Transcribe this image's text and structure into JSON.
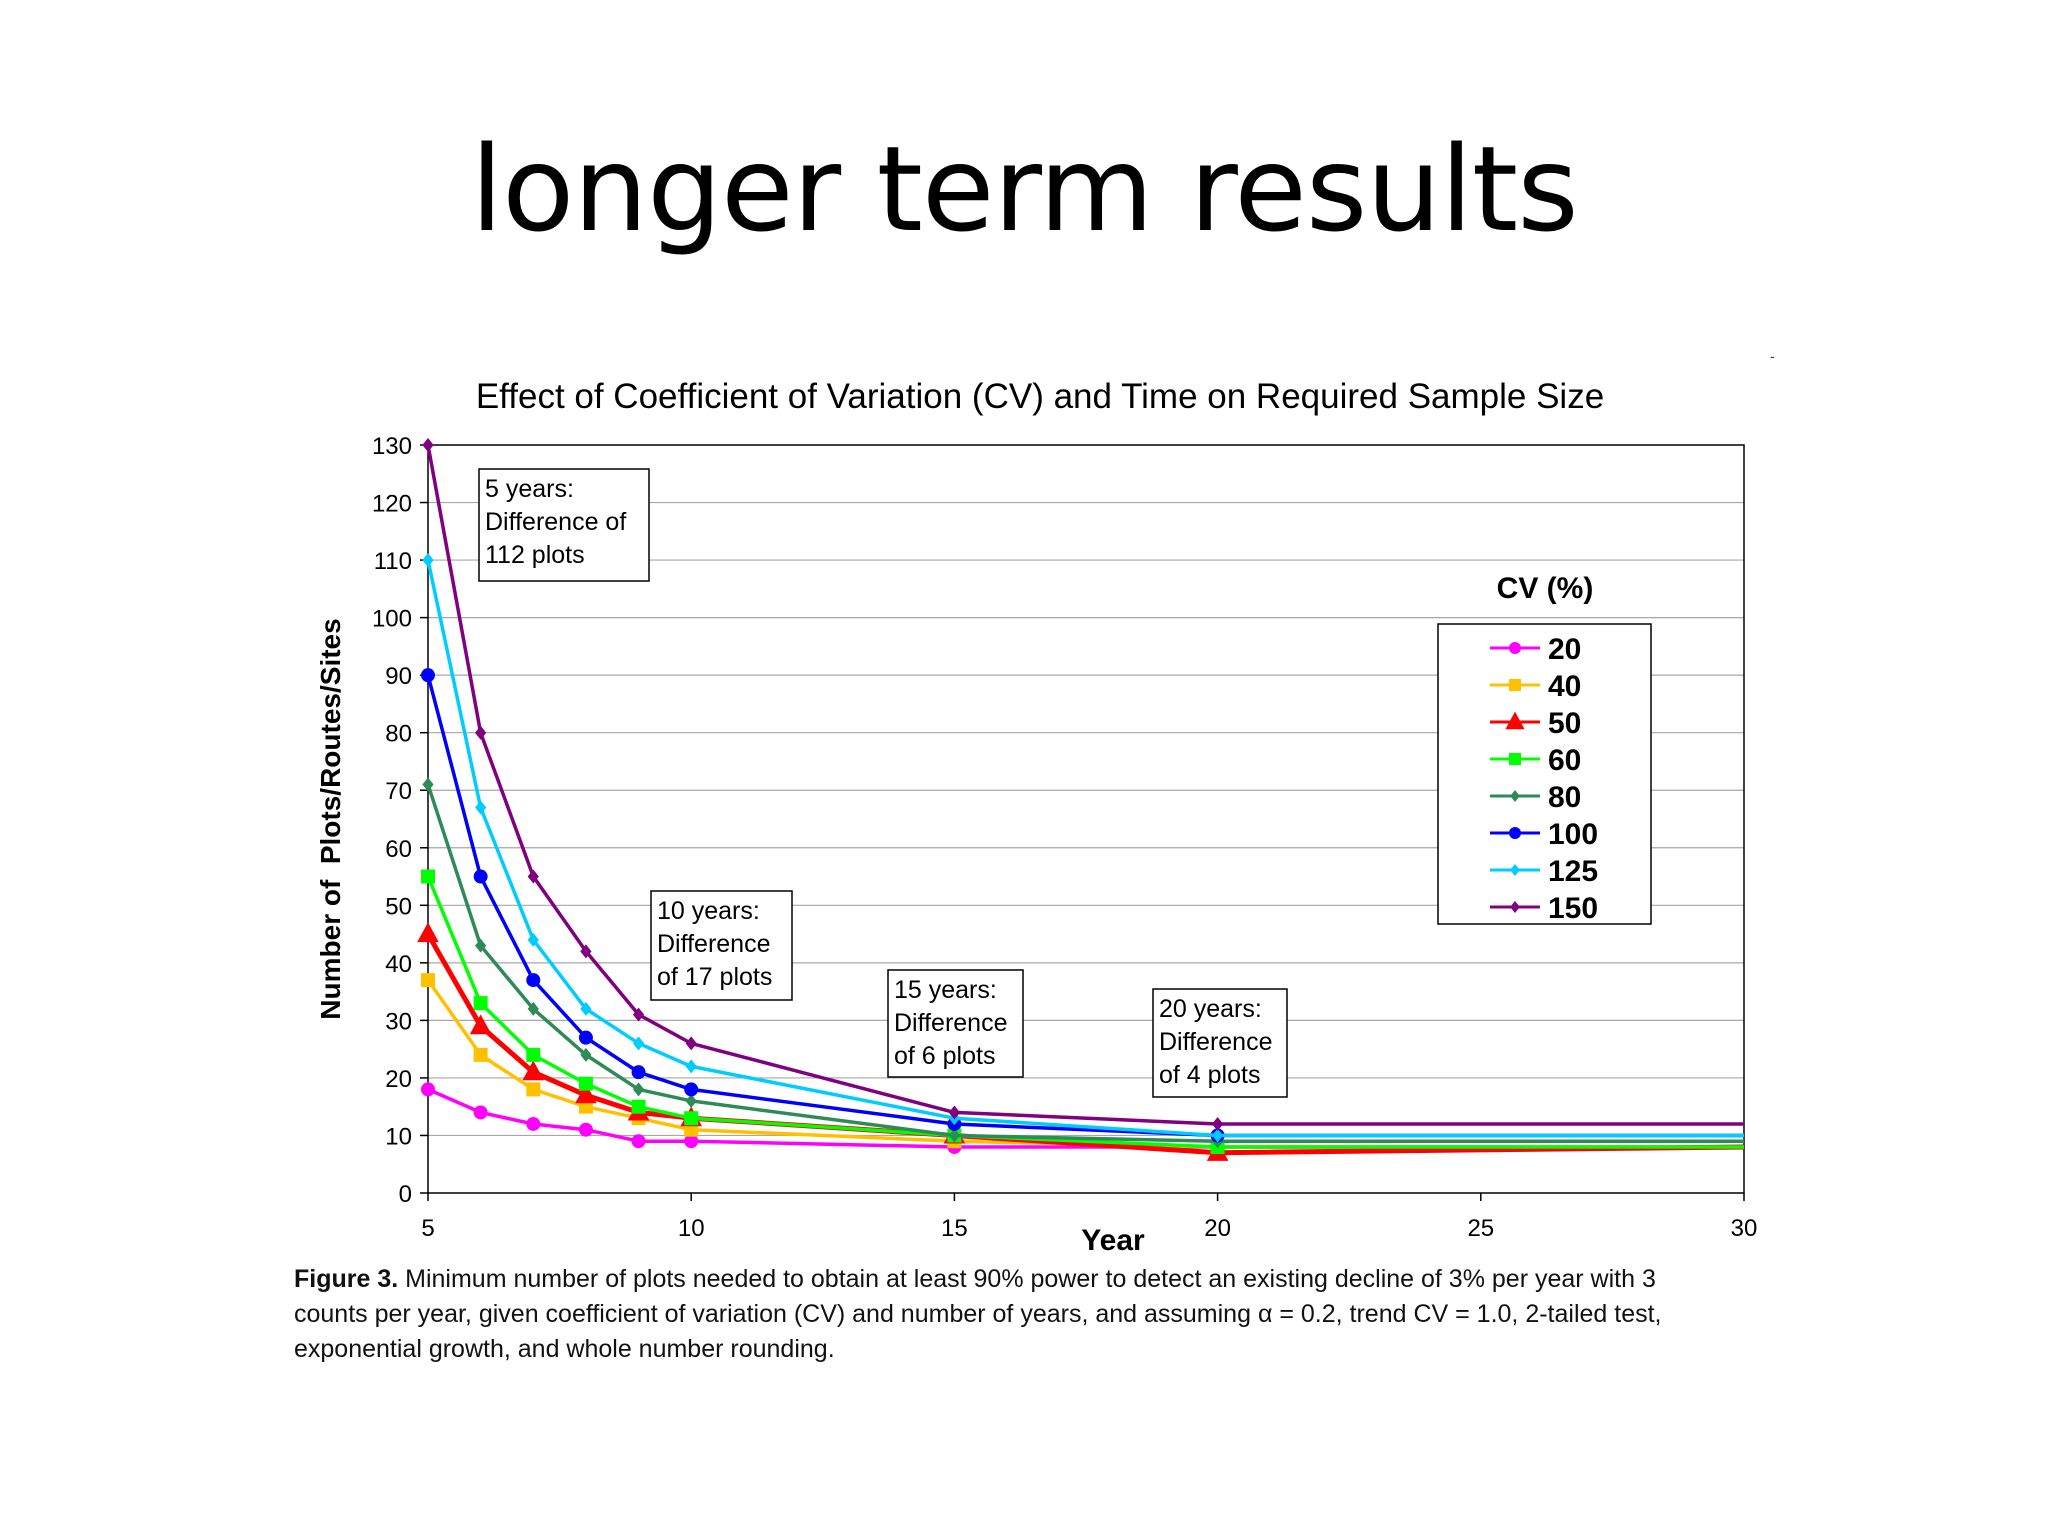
{
  "slide": {
    "title": "longer term results",
    "stray_mark": "-"
  },
  "chart_data": {
    "type": "line",
    "title": "Effect of Coefficient of Variation (CV) and Time on Required Sample Size",
    "xlabel": "Year",
    "ylabel": "Number of  Plots/Routes/Sites",
    "xlim": [
      5,
      30
    ],
    "ylim": [
      0,
      130
    ],
    "x_ticks": [
      5,
      10,
      15,
      20,
      25,
      30
    ],
    "y_ticks": [
      0,
      10,
      20,
      30,
      40,
      50,
      60,
      70,
      80,
      90,
      100,
      110,
      120,
      130
    ],
    "grid": "horizontal",
    "legend": {
      "title": "CV (%)",
      "placement": "right"
    },
    "series": [
      {
        "name": "20",
        "color": "#FF00FF",
        "marker": "circle",
        "x": [
          5,
          6,
          7,
          8,
          9,
          10,
          15,
          20,
          30
        ],
        "values": [
          18,
          14,
          12,
          11,
          9,
          9,
          8,
          8,
          8
        ]
      },
      {
        "name": "40",
        "color": "#FFC000",
        "marker": "square",
        "x": [
          5,
          6,
          7,
          8,
          9,
          10,
          15,
          20,
          30
        ],
        "values": [
          37,
          24,
          18,
          15,
          13,
          11,
          9,
          8,
          8
        ]
      },
      {
        "name": "50",
        "color": "#FF0000",
        "marker": "triangle",
        "x": [
          5,
          6,
          7,
          8,
          9,
          10,
          15,
          20,
          30
        ],
        "values": [
          45,
          29,
          21,
          17,
          14,
          13,
          10,
          7,
          8
        ]
      },
      {
        "name": "60",
        "color": "#00FF00",
        "marker": "square",
        "x": [
          5,
          6,
          7,
          8,
          9,
          10,
          15,
          20,
          30
        ],
        "values": [
          55,
          33,
          24,
          19,
          15,
          13,
          10,
          8,
          8
        ]
      },
      {
        "name": "80",
        "color": "#2E8B57",
        "marker": "diamond",
        "x": [
          5,
          6,
          7,
          8,
          9,
          10,
          15,
          20,
          30
        ],
        "values": [
          71,
          43,
          32,
          24,
          18,
          16,
          10,
          9,
          9
        ]
      },
      {
        "name": "100",
        "color": "#0000FF",
        "marker": "circle",
        "x": [
          5,
          6,
          7,
          8,
          9,
          10,
          15,
          20,
          30
        ],
        "values": [
          90,
          55,
          37,
          27,
          21,
          18,
          12,
          10,
          10
        ]
      },
      {
        "name": "125",
        "color": "#00CCFF",
        "marker": "diamond",
        "x": [
          5,
          6,
          7,
          8,
          9,
          10,
          15,
          20,
          30
        ],
        "values": [
          110,
          67,
          44,
          32,
          26,
          22,
          13,
          10,
          10
        ]
      },
      {
        "name": "150",
        "color": "#800080",
        "marker": "diamond",
        "x": [
          5,
          6,
          7,
          8,
          9,
          10,
          15,
          20,
          30
        ],
        "values": [
          130,
          80,
          55,
          42,
          31,
          26,
          14,
          12,
          12
        ]
      }
    ],
    "annotations": [
      {
        "lines": [
          "5 years:",
          "Difference of",
          "112 plots"
        ]
      },
      {
        "lines": [
          "10 years:",
          "Difference",
          "of 17 plots"
        ]
      },
      {
        "lines": [
          "15 years:",
          "Difference",
          "of 6 plots"
        ]
      },
      {
        "lines": [
          "20 years:",
          "Difference",
          "of 4 plots"
        ]
      }
    ]
  },
  "caption": {
    "label": "Figure 3.",
    "text": "Minimum number of plots needed to obtain at least 90% power to detect an existing decline of 3% per year with 3 counts per year, given coefficient of variation (CV) and number of years, and assuming α = 0.2, trend CV = 1.0, 2-tailed test, exponential growth, and whole number rounding."
  }
}
